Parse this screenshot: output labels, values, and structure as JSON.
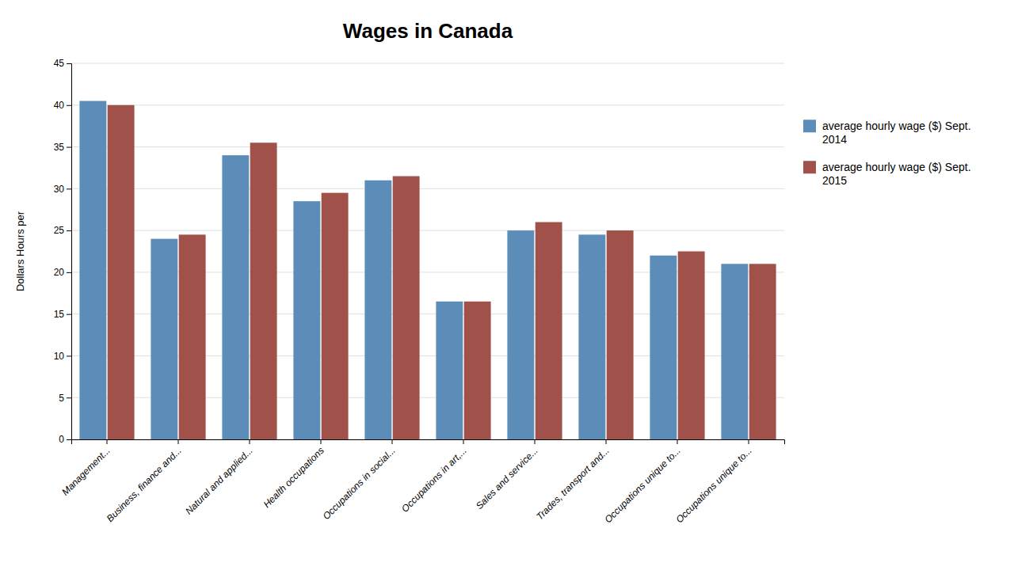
{
  "chart_data": {
    "type": "bar",
    "title": "Wages in Canada",
    "y_label": "Dollars Hours per",
    "categories": [
      "Management...",
      "Business, finance and...",
      "Natural and applied...",
      "Health occupations",
      "Occupations in social...",
      "Occupations in art,...",
      "Sales and service...",
      "Trades, transport and...",
      "Occupations unique to...",
      "Occupations unique to..."
    ],
    "series": [
      {
        "name": "average hourly wage ($) Sept.\n2014",
        "color": "#5B8DB8",
        "values": [
          40.5,
          24.0,
          34.0,
          28.5,
          31.0,
          16.5,
          25.0,
          24.5,
          22.0,
          21.0
        ]
      },
      {
        "name": "average hourly wage ($) Sept.\n2015",
        "color": "#A0514A",
        "values": [
          40.0,
          24.5,
          35.5,
          29.5,
          31.5,
          16.5,
          26.0,
          25.0,
          22.5,
          21.0
        ]
      }
    ],
    "ylim": [
      0,
      45
    ],
    "yticks": [
      0,
      5,
      10,
      15,
      20,
      25,
      30,
      35,
      40,
      45
    ],
    "grid": true,
    "legend": "right"
  }
}
